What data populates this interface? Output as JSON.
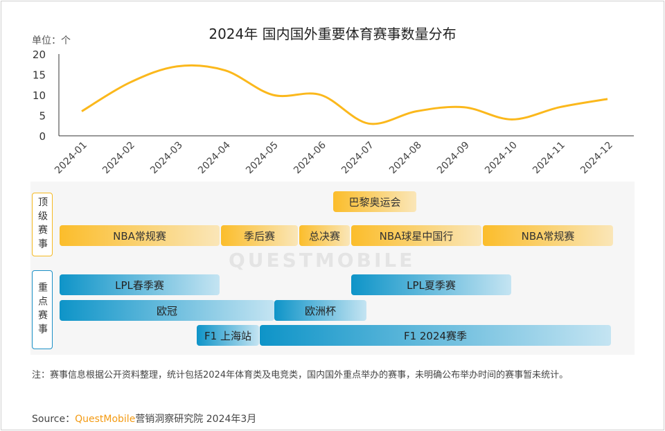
{
  "chart_data": {
    "type": "line",
    "title": "2024年 国内国外重要体育赛事数量分布",
    "ylabel": "单位：个",
    "ylim": [
      0,
      20
    ],
    "yticks": [
      "0",
      "5",
      "10",
      "15",
      "20"
    ],
    "categories": [
      "2024-01",
      "2024-02",
      "2024-03",
      "2024-04",
      "2024-05",
      "2024-06",
      "2024-07",
      "2024-08",
      "2024-09",
      "2024-10",
      "2024-11",
      "2024-12"
    ],
    "values": [
      6,
      13,
      17,
      16,
      10,
      10,
      3,
      6,
      7,
      4,
      7,
      9
    ],
    "color": "#fbb81c",
    "grid": false
  },
  "gantt": {
    "groups": [
      {
        "label": "顶级赛事",
        "color": "#f5b921"
      },
      {
        "label": "重点赛事",
        "color": "#1a8fc6"
      }
    ],
    "bars": [
      {
        "label": "巴黎奥运会",
        "group": 0,
        "start": "2024-07",
        "end": "2024-08"
      },
      {
        "label": "NBA常规赛",
        "group": 0
      },
      {
        "label": "季后赛",
        "group": 0
      },
      {
        "label": "总决赛",
        "group": 0
      },
      {
        "label": "NBA球星中国行",
        "group": 0
      },
      {
        "label": "NBA常规赛",
        "group": 0
      },
      {
        "label": "LPL春季赛",
        "group": 1
      },
      {
        "label": "LPL夏季赛",
        "group": 1
      },
      {
        "label": "欧冠",
        "group": 1
      },
      {
        "label": "欧洲杯",
        "group": 1
      },
      {
        "label": "F1 上海站",
        "group": 1
      },
      {
        "label": "F1 2024赛季",
        "group": 1
      }
    ]
  },
  "watermark": "QUESTMOBILE",
  "note": "注：赛事信息根据公开资料整理，统计包括2024年体育类及电竞类，国内国外重点举办的赛事，未明确公布举办时间的赛事暂未统计。",
  "source": {
    "prefix": "Source：",
    "brand": "QuestMobile",
    "suffix": "营销洞察研究院 2024年3月"
  }
}
